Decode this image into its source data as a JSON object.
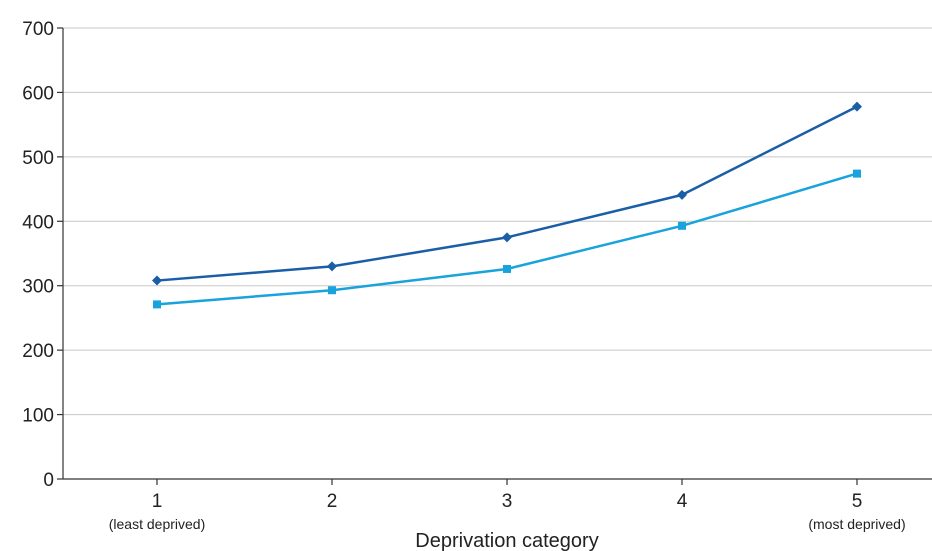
{
  "chart_data": {
    "type": "line",
    "title": "",
    "xlabel": "Deprivation category",
    "ylabel": "",
    "categories": [
      "1",
      "2",
      "3",
      "4",
      "5"
    ],
    "category_sublabels": [
      "(least deprived)",
      "",
      "",
      "",
      "(most deprived)"
    ],
    "ylim": [
      0,
      700
    ],
    "yticks": [
      0,
      100,
      200,
      300,
      400,
      500,
      600,
      700
    ],
    "grid": true,
    "legend": "none",
    "series": [
      {
        "values": [
          308,
          330,
          375,
          441,
          578
        ],
        "color": "#1a5ea8",
        "marker": "diamond"
      },
      {
        "values": [
          271,
          293,
          326,
          393,
          474
        ],
        "color": "#19a3dd",
        "marker": "square"
      }
    ]
  }
}
